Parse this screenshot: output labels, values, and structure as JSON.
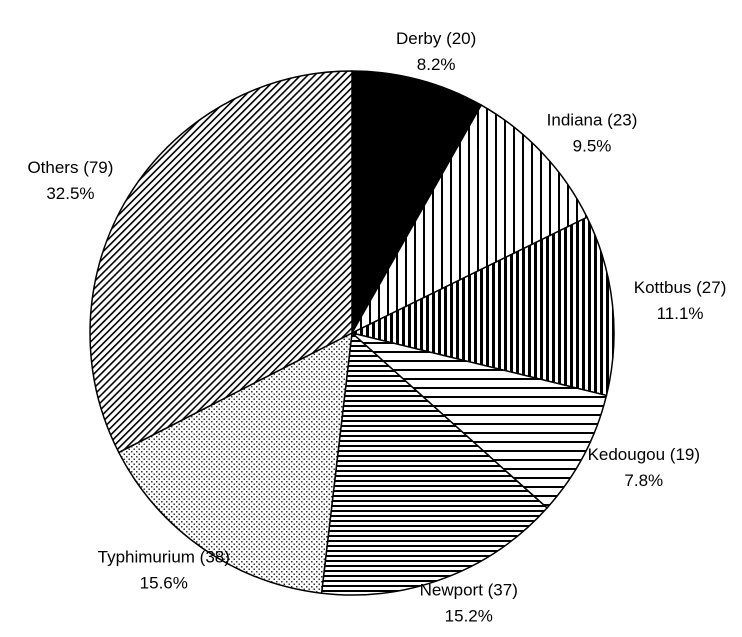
{
  "chart_data": {
    "type": "pie",
    "categories": [
      "Derby (20)",
      "Indiana (23)",
      "Kottbus (27)",
      "Kedougou (19)",
      "Newport (37)",
      "Typhimurium (38)",
      "Others (79)"
    ],
    "values": [
      8.2,
      9.5,
      11.1,
      7.8,
      15.2,
      15.6,
      32.5
    ],
    "value_labels": [
      "8.2%",
      "9.5%",
      "11.1%",
      "7.8%",
      "15.2%",
      "15.6%",
      "32.5%"
    ],
    "patterns": [
      "solid",
      "vertical",
      "vertical-dense",
      "horizontal",
      "horizontal-dense",
      "dots",
      "diagonal"
    ]
  }
}
